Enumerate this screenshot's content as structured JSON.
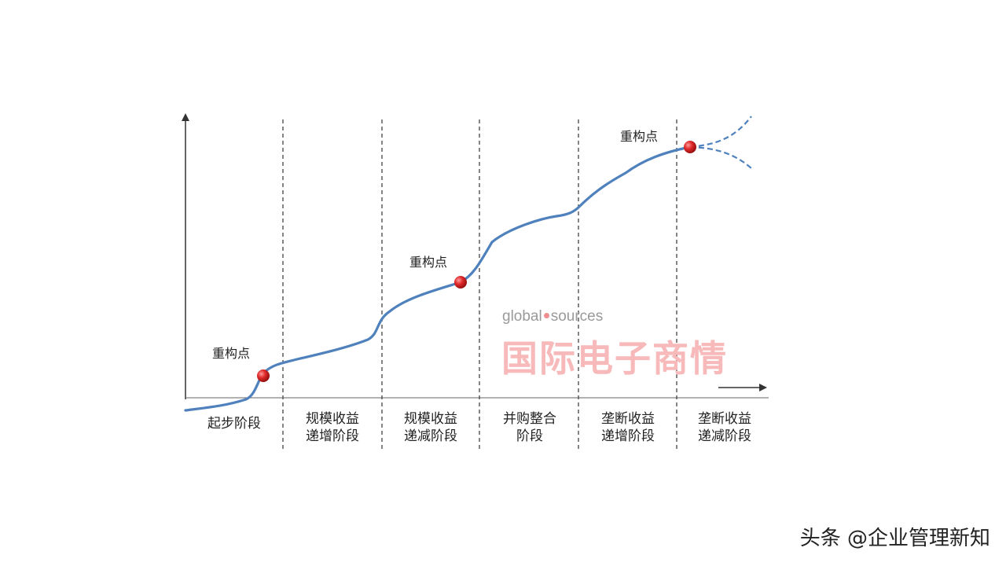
{
  "diagram": {
    "stages": [
      [
        "起步阶段"
      ],
      [
        "规模收益",
        "递增阶段"
      ],
      [
        "规模收益",
        "递减阶段"
      ],
      [
        "并购整合",
        "阶段"
      ],
      [
        "垄断收益",
        "递增阶段"
      ],
      [
        "垄断收益",
        "递减阶段"
      ]
    ],
    "restructure_points": [
      {
        "label": "重构点"
      },
      {
        "label": "重构点"
      },
      {
        "label": "重构点"
      }
    ],
    "colors": {
      "curve": "#4f81bd",
      "point": "#d62828",
      "axis": "#333333",
      "divider": "#444444"
    }
  },
  "watermark": {
    "brand_left": "global",
    "brand_right": "sources",
    "name": "国际电子商情"
  },
  "footer": {
    "credit": "头条 @企业管理新知"
  }
}
